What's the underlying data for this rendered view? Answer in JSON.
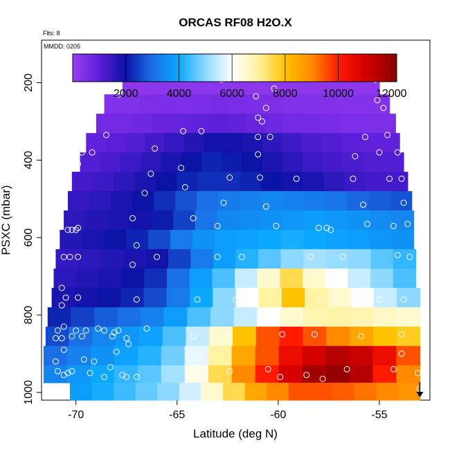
{
  "chart_data": {
    "type": "heatmap",
    "title": "ORCAS RF08 H2O.X",
    "annotations": {
      "flights": "Flts: 8",
      "mmdd": "MMDD: 0205"
    },
    "xlabel": "Latitude (deg N)",
    "ylabel": "PSXC (mbar)",
    "xlim": [
      -71.7,
      -52.5
    ],
    "ylim": [
      1020,
      90
    ],
    "y_reversed": true,
    "x_ticks": [
      -70,
      -65,
      -60,
      -55
    ],
    "y_ticks": [
      200,
      400,
      600,
      800,
      1000
    ],
    "colorbar": {
      "range": [
        0,
        12200
      ],
      "ticks": [
        2000,
        4000,
        6000,
        8000,
        10000,
        12000
      ],
      "stops": [
        {
          "v": 0,
          "color": "#9a3df2"
        },
        {
          "v": 1000,
          "color": "#5b1ed8"
        },
        {
          "v": 2000,
          "color": "#0b12a6"
        },
        {
          "v": 3000,
          "color": "#1a6fe6"
        },
        {
          "v": 4000,
          "color": "#0aa8ff"
        },
        {
          "v": 5000,
          "color": "#8dd8ff"
        },
        {
          "v": 6000,
          "color": "#ffffff"
        },
        {
          "v": 7000,
          "color": "#fff2a0"
        },
        {
          "v": 8000,
          "color": "#ffc200"
        },
        {
          "v": 9000,
          "color": "#ff8a00"
        },
        {
          "v": 10000,
          "color": "#ff1a00"
        },
        {
          "v": 11000,
          "color": "#d40000"
        },
        {
          "v": 12200,
          "color": "#8a0000"
        }
      ]
    },
    "grid": false,
    "layers": [
      {
        "p": [
          180,
          230
        ],
        "lat": [
          -67.7,
          -55.0
        ],
        "vals": [
          200,
          200,
          200,
          200,
          200,
          200,
          200,
          200,
          200,
          200,
          200,
          200,
          200,
          200,
          200,
          200
        ]
      },
      {
        "p": [
          230,
          280
        ],
        "lat": [
          -68.6,
          -54.5
        ],
        "vals": [
          400,
          420,
          450,
          480,
          500,
          520,
          560,
          520,
          480,
          450,
          420,
          400,
          380,
          360,
          350,
          350
        ]
      },
      {
        "p": [
          280,
          330
        ],
        "lat": [
          -69.0,
          -54.2
        ],
        "vals": [
          600,
          650,
          700,
          800,
          850,
          900,
          1000,
          900,
          800,
          700,
          650,
          600,
          550,
          500,
          480,
          480
        ]
      },
      {
        "p": [
          330,
          380
        ],
        "lat": [
          -69.5,
          -54.0
        ],
        "vals": [
          900,
          1000,
          1100,
          1300,
          1500,
          1700,
          1900,
          1900,
          1800,
          1600,
          1400,
          1200,
          1100,
          1000,
          900,
          900
        ]
      },
      {
        "p": [
          380,
          430
        ],
        "lat": [
          -69.8,
          -53.8
        ],
        "vals": [
          1100,
          1200,
          1400,
          1600,
          1800,
          2000,
          2200,
          2100,
          2000,
          1800,
          1600,
          1400,
          1300,
          1200,
          1100,
          1100
        ]
      },
      {
        "p": [
          430,
          480
        ],
        "lat": [
          -70.2,
          -53.6
        ],
        "vals": [
          1300,
          1400,
          1600,
          1800,
          2000,
          2200,
          2300,
          2300,
          2200,
          2000,
          1900,
          1800,
          1600,
          1400,
          1300,
          1300
        ]
      },
      {
        "p": [
          480,
          530
        ],
        "lat": [
          -70.4,
          -53.4
        ],
        "vals": [
          1500,
          1600,
          1800,
          2000,
          2300,
          2700,
          3000,
          3200,
          3300,
          3400,
          3300,
          3200,
          3100,
          2900,
          2800,
          2700
        ]
      },
      {
        "p": [
          530,
          580
        ],
        "lat": [
          -70.6,
          -53.3
        ],
        "vals": [
          1600,
          1700,
          1800,
          1900,
          2100,
          2500,
          3100,
          3400,
          3500,
          3600,
          3700,
          3800,
          3700,
          3600,
          3500,
          3400
        ]
      },
      {
        "p": [
          580,
          630
        ],
        "lat": [
          -70.8,
          -53.3
        ],
        "vals": [
          1700,
          1800,
          2000,
          2200,
          2600,
          3200,
          3600,
          3800,
          3900,
          4000,
          4100,
          4000,
          3900,
          3800,
          3700,
          3600
        ]
      },
      {
        "p": [
          630,
          680
        ],
        "lat": [
          -71.0,
          -53.2
        ],
        "vals": [
          1500,
          1600,
          1700,
          1800,
          1900,
          2500,
          3200,
          3800,
          4200,
          4600,
          5000,
          5200,
          5100,
          5000,
          4600,
          4300
        ]
      },
      {
        "p": [
          680,
          730
        ],
        "lat": [
          -71.1,
          -53.2
        ],
        "vals": [
          1600,
          1700,
          1800,
          2000,
          2300,
          3000,
          3800,
          4500,
          5500,
          6500,
          7500,
          6500,
          6000,
          5500,
          5000,
          4500
        ]
      },
      {
        "p": [
          730,
          780
        ],
        "lat": [
          -71.2,
          -53.0
        ],
        "vals": [
          1800,
          1900,
          2000,
          2200,
          2600,
          3200,
          4000,
          5000,
          6000,
          7000,
          8000,
          7000,
          6500,
          6000,
          5500,
          5000
        ]
      },
      {
        "p": [
          780,
          830
        ],
        "lat": [
          -71.4,
          -53.0
        ],
        "vals": [
          2200,
          2500,
          2800,
          3000,
          3300,
          3800,
          4500,
          5000,
          5500,
          6000,
          6500,
          6800,
          6900,
          6800,
          6600,
          6500
        ]
      },
      {
        "p": [
          830,
          880
        ],
        "lat": [
          -71.5,
          -53.0
        ],
        "vals": [
          2600,
          3000,
          3400,
          3700,
          3900,
          4500,
          5500,
          6500,
          8000,
          9500,
          10000,
          9500,
          9000,
          8500,
          8000,
          7800
        ]
      },
      {
        "p": [
          880,
          930
        ],
        "lat": [
          -71.6,
          -53.0
        ],
        "vals": [
          3000,
          3300,
          3600,
          3900,
          4200,
          4800,
          5800,
          7000,
          8500,
          9500,
          10500,
          11000,
          11500,
          11200,
          10500,
          9500
        ]
      },
      {
        "p": [
          930,
          975
        ],
        "lat": [
          -71.6,
          -53.0
        ],
        "vals": [
          3400,
          3700,
          4000,
          4300,
          4600,
          5200,
          6200,
          7500,
          9000,
          10000,
          11000,
          11800,
          12000,
          11500,
          10000,
          9000
        ]
      },
      {
        "p": [
          975,
          1020
        ],
        "lat": [
          -70.3,
          -53.0
        ],
        "vals": [
          3800,
          4100,
          4400,
          4700,
          5000,
          5600,
          6500,
          7500,
          8500,
          9000,
          9500,
          9500,
          9400,
          9200,
          9000,
          8800
        ]
      }
    ],
    "points": [
      [
        -67.7,
        190
      ],
      [
        -67.3,
        190
      ],
      [
        -66.8,
        190
      ],
      [
        -66.3,
        190
      ],
      [
        -65.8,
        190
      ],
      [
        -65.3,
        190
      ],
      [
        -64.8,
        190
      ],
      [
        -64.3,
        190
      ],
      [
        -63.8,
        190
      ],
      [
        -63.3,
        190
      ],
      [
        -62.8,
        192
      ],
      [
        -60.7,
        190
      ],
      [
        -60.2,
        190
      ],
      [
        -59.7,
        190
      ],
      [
        -59.2,
        190
      ],
      [
        -58.7,
        190
      ],
      [
        -58.2,
        190
      ],
      [
        -57.7,
        190
      ],
      [
        -57.2,
        190
      ],
      [
        -56.7,
        190
      ],
      [
        -56.2,
        190
      ],
      [
        -55.7,
        190
      ],
      [
        -55.2,
        192
      ],
      [
        -67.9,
        230
      ],
      [
        -61.1,
        235
      ],
      [
        -60.2,
        215
      ],
      [
        -55.1,
        245
      ],
      [
        -60.6,
        265
      ],
      [
        -61.0,
        290
      ],
      [
        -60.8,
        300
      ],
      [
        -54.8,
        265
      ],
      [
        -68.5,
        335
      ],
      [
        -64.7,
        325
      ],
      [
        -61.0,
        340
      ],
      [
        -60.4,
        340
      ],
      [
        -55.7,
        340
      ],
      [
        -54.6,
        335
      ],
      [
        -63.8,
        325
      ],
      [
        -69.7,
        380
      ],
      [
        -69.2,
        380
      ],
      [
        -66.1,
        370
      ],
      [
        -61.0,
        385
      ],
      [
        -55.0,
        380
      ],
      [
        -56.2,
        390
      ],
      [
        -54.1,
        380
      ],
      [
        -69.9,
        410
      ],
      [
        -64.8,
        420
      ],
      [
        -66.3,
        435
      ],
      [
        -62.4,
        445
      ],
      [
        -60.9,
        445
      ],
      [
        -59.1,
        448
      ],
      [
        -56.3,
        448
      ],
      [
        -54.5,
        448
      ],
      [
        -53.9,
        448
      ],
      [
        -66.6,
        485
      ],
      [
        -64.6,
        470
      ],
      [
        -62.7,
        510
      ],
      [
        -60.6,
        520
      ],
      [
        -55.8,
        515
      ],
      [
        -53.8,
        510
      ],
      [
        -67.2,
        550
      ],
      [
        -64.2,
        550
      ],
      [
        -60.1,
        570
      ],
      [
        -57.6,
        575
      ],
      [
        -57.4,
        580
      ],
      [
        -55.6,
        565
      ],
      [
        -53.6,
        565
      ],
      [
        -70.4,
        580
      ],
      [
        -70.2,
        580
      ],
      [
        -70.0,
        580
      ],
      [
        -69.9,
        575
      ],
      [
        -63.0,
        570
      ],
      [
        -58.0,
        575
      ],
      [
        -54.3,
        570
      ],
      [
        -67.0,
        620
      ],
      [
        -70.6,
        650
      ],
      [
        -70.3,
        650
      ],
      [
        -69.9,
        650
      ],
      [
        -66.0,
        650
      ],
      [
        -63.0,
        650
      ],
      [
        -61.8,
        650
      ],
      [
        -58.4,
        650
      ],
      [
        -56.8,
        650
      ],
      [
        -54.1,
        645
      ],
      [
        -53.5,
        650
      ],
      [
        -67.2,
        670
      ],
      [
        -70.7,
        730
      ],
      [
        -70.5,
        755
      ],
      [
        -69.9,
        755
      ],
      [
        -67.0,
        760
      ],
      [
        -64.0,
        760
      ],
      [
        -62.1,
        760
      ],
      [
        -57.9,
        760
      ],
      [
        -57.0,
        760
      ],
      [
        -55.0,
        760
      ],
      [
        -53.8,
        760
      ],
      [
        -70.7,
        775
      ],
      [
        -70.9,
        840
      ],
      [
        -70.6,
        830
      ],
      [
        -70.0,
        840
      ],
      [
        -69.5,
        840
      ],
      [
        -68.9,
        835
      ],
      [
        -68.6,
        840
      ],
      [
        -68.1,
        845
      ],
      [
        -67.9,
        840
      ],
      [
        -66.5,
        835
      ],
      [
        -64.2,
        855
      ],
      [
        -62.5,
        850
      ],
      [
        -59.8,
        850
      ],
      [
        -58.2,
        850
      ],
      [
        -55.9,
        855
      ],
      [
        -53.9,
        850
      ],
      [
        -71.0,
        860
      ],
      [
        -70.7,
        860
      ],
      [
        -70.2,
        855
      ],
      [
        -69.7,
        855
      ],
      [
        -68.2,
        855
      ],
      [
        -67.5,
        860
      ],
      [
        -67.4,
        875
      ],
      [
        -70.6,
        890
      ],
      [
        -68.0,
        895
      ],
      [
        -53.9,
        900
      ],
      [
        -71.0,
        920
      ],
      [
        -70.6,
        955
      ],
      [
        -70.2,
        945
      ],
      [
        -69.6,
        915
      ],
      [
        -69.3,
        950
      ],
      [
        -69.1,
        920
      ],
      [
        -68.6,
        960
      ],
      [
        -68.3,
        935
      ],
      [
        -67.7,
        955
      ],
      [
        -67.5,
        960
      ],
      [
        -63.8,
        940
      ],
      [
        -62.4,
        945
      ],
      [
        -60.5,
        940
      ],
      [
        -59.9,
        960
      ],
      [
        -58.6,
        955
      ],
      [
        -57.8,
        965
      ],
      [
        -56.6,
        940
      ],
      [
        -54.3,
        940
      ],
      [
        -70.9,
        945
      ],
      [
        -70.4,
        950
      ],
      [
        -67.0,
        960
      ],
      [
        -53.1,
        950
      ],
      [
        -53.0,
        990
      ]
    ],
    "marker_arrow": {
      "lat": -53.0,
      "p": 995
    }
  }
}
